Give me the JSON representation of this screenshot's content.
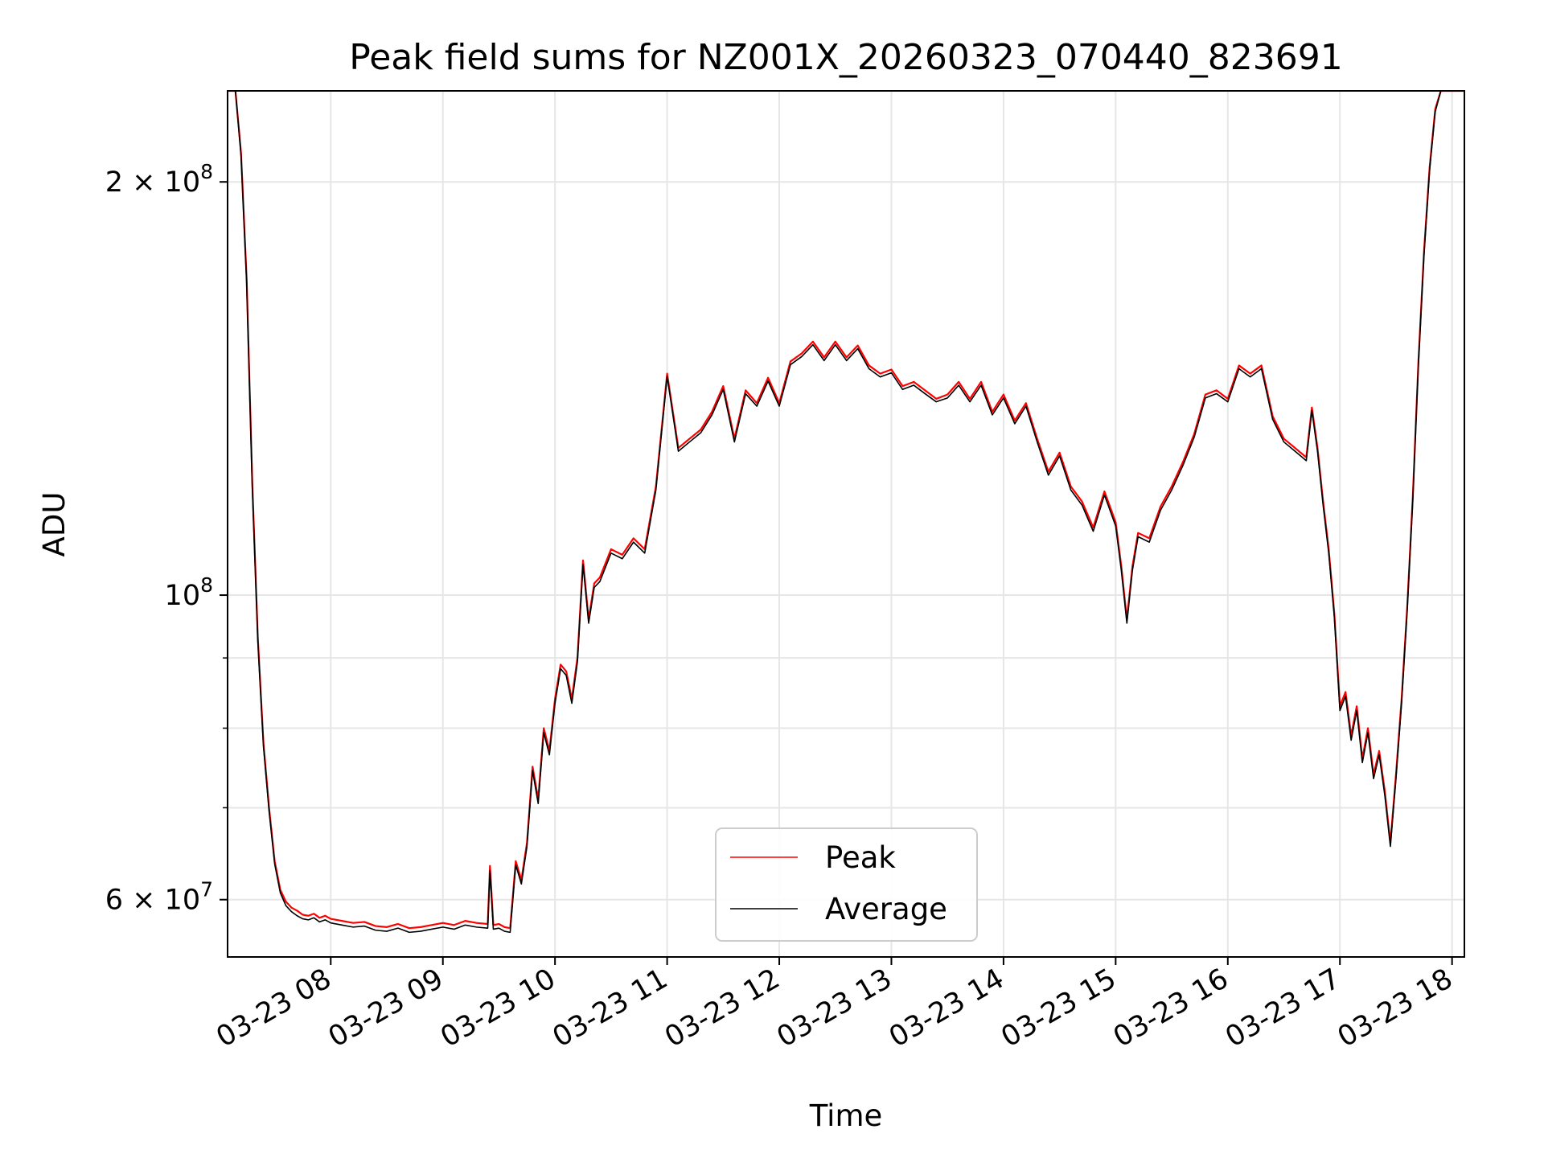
{
  "chart_data": {
    "type": "line",
    "title": "Peak field sums for NZ001X_20260323_070440_823691",
    "xlabel": "Time",
    "ylabel": "ADU",
    "x_unit": "hours_since_2026-03-23T00:00",
    "xlim": [
      7.08,
      18.11
    ],
    "ylim": [
      54500000,
      233000000
    ],
    "y_scale": "log",
    "grid": true,
    "legend_location": "lower center",
    "x_ticks": [
      {
        "value": 8,
        "label": "03-23 08"
      },
      {
        "value": 9,
        "label": "03-23 09"
      },
      {
        "value": 10,
        "label": "03-23 10"
      },
      {
        "value": 11,
        "label": "03-23 11"
      },
      {
        "value": 12,
        "label": "03-23 12"
      },
      {
        "value": 13,
        "label": "03-23 13"
      },
      {
        "value": 14,
        "label": "03-23 14"
      },
      {
        "value": 15,
        "label": "03-23 15"
      },
      {
        "value": 16,
        "label": "03-23 16"
      },
      {
        "value": 17,
        "label": "03-23 17"
      },
      {
        "value": 18,
        "label": "03-23 18"
      }
    ],
    "y_major_ticks": [
      {
        "value": 60000000,
        "mantissa": "6",
        "sep": " × ",
        "base": "10",
        "exp": "7"
      },
      {
        "value": 100000000,
        "mantissa": "",
        "sep": "",
        "base": "10",
        "exp": "8"
      },
      {
        "value": 200000000,
        "mantissa": "2",
        "sep": " × ",
        "base": "10",
        "exp": "8"
      }
    ],
    "y_minor_ticks": [
      70000000,
      80000000,
      90000000
    ],
    "series": [
      {
        "name": "Peak",
        "color": "#ff0000",
        "x": [
          7.08,
          7.15,
          7.2,
          7.25,
          7.3,
          7.35,
          7.4,
          7.45,
          7.5,
          7.55,
          7.6,
          7.65,
          7.7,
          7.75,
          7.8,
          7.85,
          7.9,
          7.95,
          8.0,
          8.1,
          8.2,
          8.3,
          8.4,
          8.5,
          8.6,
          8.7,
          8.8,
          8.9,
          9.0,
          9.1,
          9.2,
          9.3,
          9.4,
          9.42,
          9.45,
          9.5,
          9.55,
          9.6,
          9.65,
          9.7,
          9.75,
          9.8,
          9.85,
          9.9,
          9.95,
          10.0,
          10.05,
          10.1,
          10.15,
          10.2,
          10.25,
          10.3,
          10.35,
          10.4,
          10.5,
          10.6,
          10.7,
          10.8,
          10.9,
          11.0,
          11.1,
          11.2,
          11.3,
          11.4,
          11.5,
          11.6,
          11.7,
          11.8,
          11.9,
          12.0,
          12.1,
          12.2,
          12.3,
          12.4,
          12.5,
          12.6,
          12.7,
          12.8,
          12.9,
          13.0,
          13.1,
          13.2,
          13.3,
          13.4,
          13.5,
          13.6,
          13.7,
          13.8,
          13.9,
          14.0,
          14.1,
          14.2,
          14.3,
          14.4,
          14.5,
          14.6,
          14.7,
          14.8,
          14.9,
          15.0,
          15.05,
          15.1,
          15.15,
          15.2,
          15.3,
          15.4,
          15.5,
          15.6,
          15.7,
          15.8,
          15.9,
          16.0,
          16.1,
          16.2,
          16.3,
          16.4,
          16.5,
          16.6,
          16.7,
          16.75,
          16.8,
          16.85,
          16.9,
          16.95,
          17.0,
          17.05,
          17.1,
          17.15,
          17.2,
          17.25,
          17.3,
          17.35,
          17.4,
          17.45,
          17.5,
          17.55,
          17.6,
          17.65,
          17.7,
          17.75,
          17.8,
          17.85,
          17.9,
          17.95,
          18.0,
          18.05,
          18.11
        ],
        "values": [
          233000000,
          233000000,
          210000000,
          170000000,
          121000000,
          93000000,
          78000000,
          70000000,
          64000000,
          61000000,
          59800000,
          59200000,
          58900000,
          58500000,
          58400000,
          58600000,
          58200000,
          58400000,
          58100000,
          57900000,
          57700000,
          57800000,
          57400000,
          57300000,
          57600000,
          57200000,
          57300000,
          57500000,
          57700000,
          57500000,
          57900000,
          57700000,
          57600000,
          63500000,
          57500000,
          57600000,
          57300000,
          57200000,
          64000000,
          62000000,
          66000000,
          75000000,
          71000000,
          80000000,
          77000000,
          84000000,
          89000000,
          88000000,
          84000000,
          90000000,
          106000000,
          96000000,
          102000000,
          103000000,
          108000000,
          107000000,
          110000000,
          108000000,
          120000000,
          145000000,
          128000000,
          130000000,
          132000000,
          136000000,
          142000000,
          130000000,
          141000000,
          138000000,
          144000000,
          138000000,
          148000000,
          150000000,
          153000000,
          149000000,
          153000000,
          149000000,
          152000000,
          147000000,
          145000000,
          146000000,
          142000000,
          143000000,
          141000000,
          139000000,
          140000000,
          143000000,
          139000000,
          143000000,
          136000000,
          140000000,
          134000000,
          138000000,
          130000000,
          123000000,
          127000000,
          120000000,
          117000000,
          112000000,
          119000000,
          113000000,
          105000000,
          96000000,
          105000000,
          111000000,
          110000000,
          116000000,
          120000000,
          125000000,
          131000000,
          140000000,
          141000000,
          139000000,
          147000000,
          145000000,
          147000000,
          135000000,
          130000000,
          128000000,
          126000000,
          137000000,
          128000000,
          117000000,
          108000000,
          97000000,
          83000000,
          85000000,
          79000000,
          83000000,
          76000000,
          80000000,
          74000000,
          77000000,
          72000000,
          66000000,
          74000000,
          84000000,
          98000000,
          118000000,
          148000000,
          178000000,
          205000000,
          226000000,
          233000000,
          233000000,
          233000000,
          233000000,
          233000000
        ]
      },
      {
        "name": "Average",
        "color": "#000000",
        "x": [
          7.08,
          7.15,
          7.2,
          7.25,
          7.3,
          7.35,
          7.4,
          7.45,
          7.5,
          7.55,
          7.6,
          7.65,
          7.7,
          7.75,
          7.8,
          7.85,
          7.9,
          7.95,
          8.0,
          8.1,
          8.2,
          8.3,
          8.4,
          8.5,
          8.6,
          8.7,
          8.8,
          8.9,
          9.0,
          9.1,
          9.2,
          9.3,
          9.4,
          9.42,
          9.45,
          9.5,
          9.55,
          9.6,
          9.65,
          9.7,
          9.75,
          9.8,
          9.85,
          9.9,
          9.95,
          10.0,
          10.05,
          10.1,
          10.15,
          10.2,
          10.25,
          10.3,
          10.35,
          10.4,
          10.5,
          10.6,
          10.7,
          10.8,
          10.9,
          11.0,
          11.1,
          11.2,
          11.3,
          11.4,
          11.5,
          11.6,
          11.7,
          11.8,
          11.9,
          12.0,
          12.1,
          12.2,
          12.3,
          12.4,
          12.5,
          12.6,
          12.7,
          12.8,
          12.9,
          13.0,
          13.1,
          13.2,
          13.3,
          13.4,
          13.5,
          13.6,
          13.7,
          13.8,
          13.9,
          14.0,
          14.1,
          14.2,
          14.3,
          14.4,
          14.5,
          14.6,
          14.7,
          14.8,
          14.9,
          15.0,
          15.05,
          15.1,
          15.15,
          15.2,
          15.3,
          15.4,
          15.5,
          15.6,
          15.7,
          15.8,
          15.9,
          16.0,
          16.1,
          16.2,
          16.3,
          16.4,
          16.5,
          16.6,
          16.7,
          16.75,
          16.8,
          16.85,
          16.9,
          16.95,
          17.0,
          17.05,
          17.1,
          17.15,
          17.2,
          17.25,
          17.3,
          17.35,
          17.4,
          17.45,
          17.5,
          17.55,
          17.6,
          17.65,
          17.7,
          17.75,
          17.8,
          17.85,
          17.9,
          17.95,
          18.0,
          18.05,
          18.11
        ],
        "values": [
          233000000,
          233000000,
          209000000,
          169000000,
          120000000,
          92500000,
          77600000,
          69600000,
          63700000,
          60700000,
          59400000,
          58800000,
          58400000,
          58100000,
          58000000,
          58200000,
          57800000,
          58000000,
          57700000,
          57500000,
          57300000,
          57400000,
          57000000,
          56900000,
          57200000,
          56800000,
          56900000,
          57100000,
          57300000,
          57100000,
          57500000,
          57300000,
          57200000,
          63000000,
          57100000,
          57200000,
          56900000,
          56800000,
          63600000,
          61600000,
          65600000,
          74500000,
          70500000,
          79400000,
          76500000,
          83400000,
          88400000,
          87400000,
          83400000,
          89400000,
          105300000,
          95400000,
          101300000,
          102300000,
          107300000,
          106300000,
          109300000,
          107300000,
          119300000,
          144300000,
          127300000,
          129300000,
          131300000,
          135300000,
          141200000,
          129300000,
          140200000,
          137300000,
          143200000,
          137300000,
          147200000,
          149200000,
          152200000,
          148200000,
          152200000,
          148200000,
          151200000,
          146200000,
          144200000,
          145200000,
          141200000,
          142200000,
          140200000,
          138300000,
          139200000,
          142200000,
          138300000,
          142200000,
          135300000,
          139200000,
          133300000,
          137300000,
          129300000,
          122300000,
          126300000,
          119300000,
          116300000,
          111300000,
          118300000,
          112300000,
          104300000,
          95400000,
          104300000,
          110300000,
          109300000,
          115300000,
          119300000,
          124300000,
          130300000,
          139200000,
          140200000,
          138300000,
          146200000,
          144200000,
          146200000,
          134300000,
          129300000,
          127300000,
          125300000,
          136300000,
          127300000,
          116300000,
          107300000,
          96400000,
          82400000,
          84400000,
          78400000,
          82400000,
          75500000,
          79400000,
          73500000,
          76500000,
          71500000,
          65600000,
          73500000,
          83400000,
          97400000,
          117300000,
          147200000,
          177000000,
          204000000,
          225000000,
          233000000,
          233000000,
          233000000,
          233000000,
          233000000
        ]
      }
    ]
  }
}
